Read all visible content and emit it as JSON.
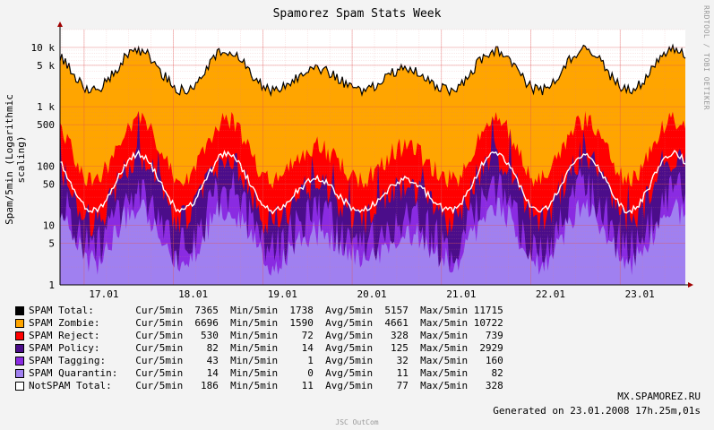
{
  "title": "Spamorez Spam Stats Week",
  "watermark": "RRDTOOL / TOBI OETIKER",
  "footer": "JSC OutCom",
  "host": "MX.SPAMOREZ.RU",
  "generated": "Generated on 23.01.2008 17h.25m,01s",
  "chart_data": {
    "type": "area",
    "title": "Spamorez Spam Stats Week",
    "ylabel": "Spam/5min (Logarithmic scaling)",
    "yscale": "log",
    "ylim": [
      1,
      20000
    ],
    "y_ticks": [
      {
        "value": 1,
        "label": "1"
      },
      {
        "value": 5,
        "label": "5"
      },
      {
        "value": 10,
        "label": "10"
      },
      {
        "value": 50,
        "label": "50"
      },
      {
        "value": 100,
        "label": "100"
      },
      {
        "value": 500,
        "label": "500"
      },
      {
        "value": 1000,
        "label": "1 k"
      },
      {
        "value": 5000,
        "label": "5 k"
      },
      {
        "value": 10000,
        "label": "10 k"
      }
    ],
    "x_ticks": [
      "17.01",
      "18.01",
      "19.01",
      "20.01",
      "21.01",
      "22.01",
      "23.01"
    ],
    "x_tick_days": [
      0,
      1,
      2,
      3,
      4,
      5,
      6
    ],
    "x_range_days": [
      -0.27,
      6.73
    ],
    "grid": true,
    "legend_position": "bottom",
    "series": [
      {
        "name": "SPAM Total:",
        "color": "#000000",
        "cur": 7365,
        "min": 1738,
        "avg": 5157,
        "max": 11715
      },
      {
        "name": "SPAM Zombie:",
        "color": "#ffa500",
        "cur": 6696,
        "min": 1590,
        "avg": 4661,
        "max": 10722
      },
      {
        "name": "SPAM Reject:",
        "color": "#ff0000",
        "cur": 530,
        "min": 72,
        "avg": 328,
        "max": 739
      },
      {
        "name": "SPAM Policy:",
        "color": "#4b0d8a",
        "cur": 82,
        "min": 14,
        "avg": 125,
        "max": 2929
      },
      {
        "name": "SPAM Tagging:",
        "color": "#8a2be2",
        "cur": 43,
        "min": 1,
        "avg": 32,
        "max": 160
      },
      {
        "name": "SPAM Quarantin:",
        "color": "#a080f0",
        "cur": 14,
        "min": 0,
        "avg": 11,
        "max": 82
      },
      {
        "name": "NotSPAM Total:",
        "color": "#ffffff",
        "cur": 186,
        "min": 11,
        "avg": 77,
        "max": 328
      }
    ],
    "stat_labels": {
      "cur": "Cur/5min",
      "min": "Min/5min",
      "avg": "Avg/5min",
      "max": "Max/5min"
    }
  }
}
